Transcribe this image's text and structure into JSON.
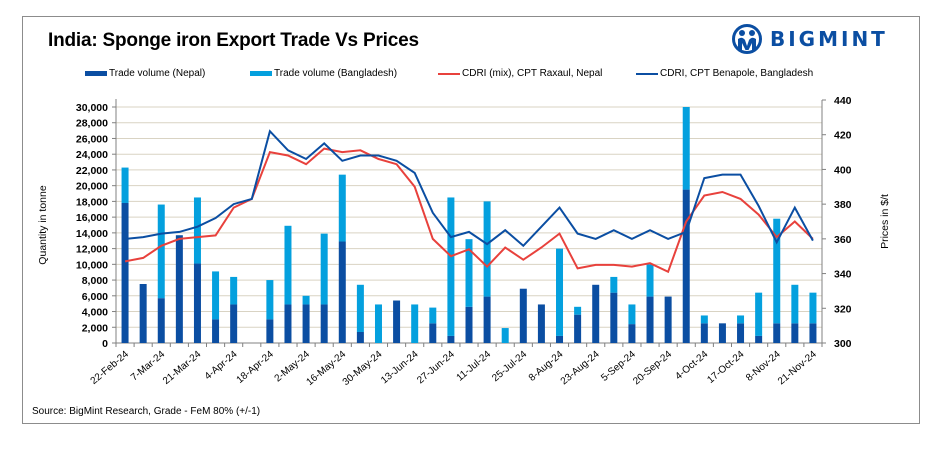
{
  "title": "India: Sponge iron Export Trade Vs Prices",
  "brand": {
    "name": "BIGMINT",
    "color": "#0b4ea2"
  },
  "legend": [
    {
      "label": "Trade volume (Nepal)",
      "kind": "bar",
      "color": "#0b4ea2"
    },
    {
      "label": "Trade volume (Bangladesh)",
      "kind": "bar",
      "color": "#04a0de"
    },
    {
      "label": "CDRI (mix), CPT Raxaul, Nepal",
      "kind": "line",
      "color": "#e8413c"
    },
    {
      "label": "CDRI, CPT Benapole, Bangladesh",
      "kind": "line",
      "color": "#0b4ea2"
    }
  ],
  "source": "Source: BigMint Research, Grade - FeM 80% (+/-1)",
  "chart_data": {
    "type": "bar+line",
    "title": "India: Sponge iron Export Trade Vs Prices",
    "ylabel": "Quantity in tonne",
    "y2label": "Prices in $/t",
    "ylim": [
      0,
      30000
    ],
    "y2lim": [
      300,
      440
    ],
    "yticks": [
      "0",
      "2,000",
      "4,000",
      "6,000",
      "8,000",
      "10,000",
      "12,000",
      "14,000",
      "16,000",
      "18,000",
      "20,000",
      "22,000",
      "24,000",
      "26,000",
      "28,000",
      "30,000"
    ],
    "y2ticks": [
      "300",
      "320",
      "340",
      "360",
      "380",
      "400",
      "420",
      "440"
    ],
    "grid": true,
    "legend_position": "top",
    "x_labels": [
      "22-Feb-24",
      "7-Mar-24",
      "21-Mar-24",
      "4-Apr-24",
      "18-Apr-24",
      "2-May-24",
      "16-May-24",
      "30-May-24",
      "13-Jun-24",
      "27-Jun-24",
      "11-Jul-24",
      "25-Jul-24",
      "8-Aug-24",
      "23-Aug-24",
      "5-Sep-24",
      "20-Sep-24",
      "4-Oct-24",
      "17-Oct-24",
      "8-Nov-24",
      "21-Nov-24"
    ],
    "x_label_every": 2,
    "n_points": 39,
    "series": [
      {
        "name": "Trade volume (Nepal)",
        "type": "bar",
        "stack": "volume",
        "color": "#0b4ea2",
        "values": [
          17800,
          7500,
          5700,
          13700,
          10100,
          3000,
          4900,
          0,
          3000,
          4900,
          4900,
          4900,
          12900,
          1400,
          0,
          5400,
          0,
          2500,
          900,
          4600,
          5900,
          0,
          6900,
          4900,
          900,
          3600,
          7400,
          6400,
          2400,
          5900,
          5900,
          19500,
          2500,
          2500,
          2500,
          900,
          2500,
          2500,
          2500
        ]
      },
      {
        "name": "Trade volume (Bangladesh)",
        "type": "bar",
        "stack": "volume",
        "color": "#04a0de",
        "values": [
          4500,
          0,
          11900,
          0,
          8400,
          6100,
          3500,
          0,
          5000,
          10000,
          1100,
          9000,
          8500,
          6000,
          4900,
          0,
          4900,
          2000,
          17600,
          8600,
          12100,
          1900,
          0,
          0,
          11100,
          1000,
          0,
          2000,
          2500,
          4100,
          0,
          10500,
          1000,
          0,
          1000,
          5500,
          13300,
          4900,
          3900
        ]
      },
      {
        "name": "CDRI (mix), CPT Raxaul, Nepal",
        "type": "line",
        "axis": "right",
        "color": "#e8413c",
        "values": [
          347,
          349,
          356,
          360,
          361,
          362,
          378,
          383,
          410,
          408,
          403,
          412,
          410,
          411,
          406,
          403,
          390,
          360,
          350,
          354,
          344,
          355,
          348,
          355,
          363,
          343,
          345,
          345,
          344,
          346,
          341,
          370,
          385,
          387,
          383,
          374,
          361,
          370,
          360
        ]
      },
      {
        "name": "CDRI, CPT Benapole, Bangladesh",
        "type": "line",
        "axis": "right",
        "color": "#0b4ea2",
        "values": [
          360,
          361,
          363,
          364,
          367,
          372,
          380,
          383,
          422,
          411,
          406,
          415,
          405,
          408,
          408,
          405,
          398,
          375,
          361,
          364,
          357,
          365,
          356,
          367,
          378,
          363,
          360,
          365,
          360,
          365,
          360,
          364,
          395,
          397,
          397,
          379,
          358,
          378,
          359
        ]
      }
    ]
  }
}
